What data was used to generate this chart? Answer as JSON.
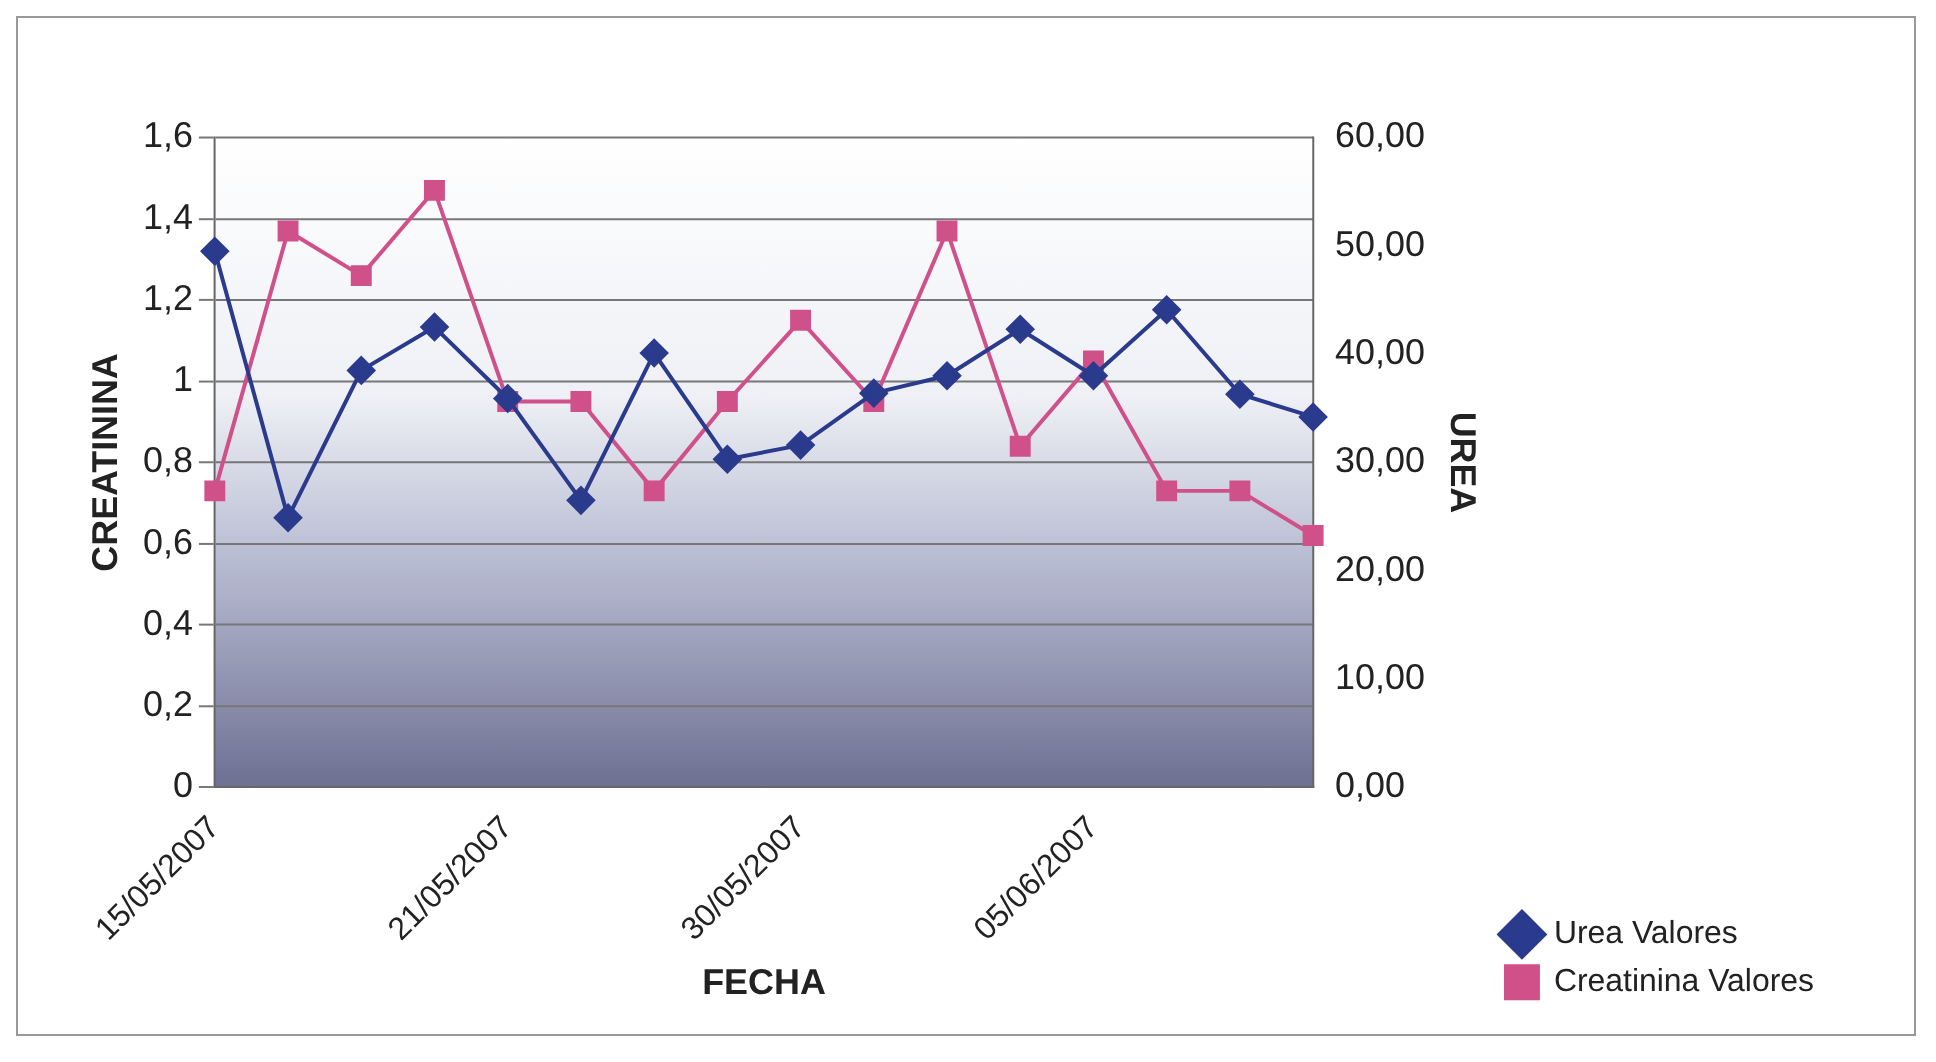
{
  "chart_data": {
    "type": "line",
    "xlabel": "FECHA",
    "ylabel": "CREATININA",
    "y2label": "UREA",
    "categories": [
      "15/05/2007",
      null,
      null,
      null,
      "21/05/2007",
      null,
      null,
      null,
      "30/05/2007",
      null,
      null,
      null,
      "05/06/2007",
      null,
      null,
      null
    ],
    "series": [
      {
        "name": "Creatinina Valores",
        "color": "#d0508a",
        "marker": "square",
        "values": [
          0.73,
          1.37,
          1.26,
          1.47,
          0.95,
          0.95,
          0.73,
          0.95,
          1.15,
          0.95,
          1.37,
          0.84,
          1.05,
          0.73,
          0.73,
          0.62
        ]
      },
      {
        "name": "Urea Valores",
        "color": "#2a3a8c",
        "marker": "diamond",
        "axis": "y2",
        "values": [
          49.5,
          24.9,
          38.5,
          42.5,
          35.9,
          26.5,
          40.1,
          30.3,
          31.6,
          36.4,
          38.0,
          42.3,
          38.0,
          44.1,
          36.3,
          34.2
        ]
      }
    ],
    "ylim": [
      0,
      1.6
    ],
    "yticks": [
      0,
      {
        "value": 0.2,
        "label": "0,2"
      },
      {
        "value": 0.4,
        "label": "0,4"
      },
      {
        "value": 0.6,
        "label": "0,6"
      },
      {
        "value": 0.8,
        "label": "0,8"
      },
      1,
      {
        "value": 1.2,
        "label": "1,2"
      },
      {
        "value": 1.4,
        "label": "1,4"
      },
      {
        "value": 1.6,
        "label": "1,6"
      }
    ],
    "y2lim": [
      0,
      60
    ],
    "y2ticks": [
      {
        "value": 0,
        "label": "0,00"
      },
      {
        "value": 10,
        "label": "10,00"
      },
      {
        "value": 20,
        "label": "20,00"
      },
      {
        "value": 30,
        "label": "30,00"
      },
      {
        "value": 40,
        "label": "40,00"
      },
      {
        "value": 50,
        "label": "50,00"
      },
      {
        "value": 60,
        "label": "60,00"
      }
    ],
    "grid": "y",
    "legend": "bottom right",
    "line_style": "solid"
  }
}
